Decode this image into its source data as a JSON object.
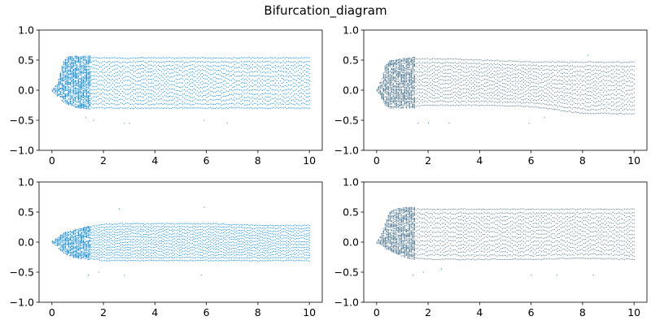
{
  "figure": {
    "title": "Bifurcation_diagram",
    "point_color": "#1f77b4"
  },
  "chart_data": [
    {
      "type": "scatter",
      "panel": "top-left",
      "title": "",
      "xlabel": "",
      "ylabel": "",
      "xlim": [
        -0.5,
        10.5
      ],
      "ylim": [
        -1.0,
        1.0
      ],
      "xticks": [
        0,
        2,
        4,
        6,
        8,
        10
      ],
      "xtick_labels": [
        "0",
        "2",
        "4",
        "6",
        "8",
        "10"
      ],
      "yticks": [
        -1.0,
        -0.5,
        0.0,
        0.5,
        1.0
      ],
      "ytick_labels": [
        "−1.0",
        "−0.5",
        "0.0",
        "0.5",
        "1.0"
      ],
      "grid": false,
      "x_range": [
        0,
        10
      ],
      "envelope": {
        "r": [
          0.0,
          0.2,
          0.3,
          0.5,
          0.8,
          1.0,
          1.5,
          2.0,
          3.0,
          4.0,
          6.0,
          8.0,
          10.0
        ],
        "upper": [
          0.02,
          0.1,
          0.3,
          0.55,
          0.57,
          0.57,
          0.57,
          0.57,
          0.57,
          0.57,
          0.57,
          0.57,
          0.57
        ],
        "lower": [
          -0.02,
          -0.1,
          -0.15,
          -0.22,
          -0.27,
          -0.3,
          -0.32,
          -0.33,
          -0.33,
          -0.33,
          -0.33,
          -0.33,
          -0.33
        ]
      },
      "outliers": [
        [
          1.3,
          -0.45
        ],
        [
          1.6,
          -0.5
        ],
        [
          2.8,
          -0.55
        ],
        [
          3.0,
          -0.55
        ],
        [
          5.9,
          -0.5
        ],
        [
          6.8,
          -0.55
        ]
      ]
    },
    {
      "type": "scatter",
      "panel": "top-right",
      "title": "",
      "xlabel": "",
      "ylabel": "",
      "xlim": [
        -0.5,
        10.5
      ],
      "ylim": [
        -1.0,
        1.0
      ],
      "xticks": [
        0,
        2,
        4,
        6,
        8,
        10
      ],
      "xtick_labels": [
        "0",
        "2",
        "4",
        "6",
        "8",
        "10"
      ],
      "yticks": [
        -1.0,
        -0.5,
        0.0,
        0.5,
        1.0
      ],
      "ytick_labels": [
        "−1.0",
        "−0.5",
        "0.0",
        "0.5",
        "1.0"
      ],
      "grid": false,
      "x_range": [
        0,
        10
      ],
      "envelope": {
        "r": [
          0.0,
          0.2,
          0.3,
          0.5,
          0.8,
          1.0,
          1.5,
          2.0,
          3.0,
          4.0,
          6.0,
          8.0,
          10.0
        ],
        "upper": [
          0.02,
          0.2,
          0.4,
          0.5,
          0.52,
          0.53,
          0.55,
          0.55,
          0.55,
          0.53,
          0.5,
          0.5,
          0.5
        ],
        "lower": [
          -0.02,
          -0.15,
          -0.25,
          -0.3,
          -0.3,
          -0.3,
          -0.3,
          -0.28,
          -0.28,
          -0.28,
          -0.3,
          -0.42,
          -0.43
        ]
      },
      "outliers": [
        [
          1.6,
          -0.55
        ],
        [
          2.0,
          -0.55
        ],
        [
          2.8,
          -0.55
        ],
        [
          5.9,
          -0.55
        ],
        [
          6.5,
          -0.45
        ],
        [
          8.2,
          0.58
        ]
      ]
    },
    {
      "type": "scatter",
      "panel": "bottom-left",
      "title": "",
      "xlabel": "",
      "ylabel": "",
      "xlim": [
        -0.5,
        10.5
      ],
      "ylim": [
        -1.0,
        1.0
      ],
      "xticks": [
        0,
        2,
        4,
        6,
        8,
        10
      ],
      "xtick_labels": [
        "0",
        "2",
        "4",
        "6",
        "8",
        "10"
      ],
      "yticks": [
        -1.0,
        -0.5,
        0.0,
        0.5,
        1.0
      ],
      "ytick_labels": [
        "−1.0",
        "−0.5",
        "0.0",
        "0.5",
        "1.0"
      ],
      "grid": false,
      "x_range": [
        0,
        10
      ],
      "envelope": {
        "r": [
          0.0,
          0.2,
          0.3,
          0.5,
          0.8,
          1.0,
          1.5,
          2.0,
          3.0,
          4.0,
          6.0,
          8.0,
          10.0
        ],
        "upper": [
          0.02,
          0.08,
          0.12,
          0.16,
          0.2,
          0.22,
          0.28,
          0.32,
          0.33,
          0.33,
          0.33,
          0.3,
          0.3
        ],
        "lower": [
          -0.02,
          -0.08,
          -0.15,
          -0.2,
          -0.25,
          -0.28,
          -0.3,
          -0.33,
          -0.33,
          -0.33,
          -0.33,
          -0.33,
          -0.33
        ]
      },
      "outliers": [
        [
          1.4,
          -0.55
        ],
        [
          1.8,
          -0.5
        ],
        [
          2.6,
          0.55
        ],
        [
          2.8,
          -0.55
        ],
        [
          5.9,
          0.58
        ],
        [
          5.8,
          -0.55
        ]
      ]
    },
    {
      "type": "scatter",
      "panel": "bottom-right",
      "title": "",
      "xlabel": "",
      "ylabel": "",
      "xlim": [
        -0.5,
        10.5
      ],
      "ylim": [
        -1.0,
        1.0
      ],
      "xticks": [
        0,
        2,
        4,
        6,
        8,
        10
      ],
      "xtick_labels": [
        "0",
        "2",
        "4",
        "6",
        "8",
        "10"
      ],
      "yticks": [
        -1.0,
        -0.5,
        0.0,
        0.5,
        1.0
      ],
      "ytick_labels": [
        "−1.0",
        "−0.5",
        "0.0",
        "0.5",
        "1.0"
      ],
      "grid": false,
      "x_range": [
        0,
        10
      ],
      "envelope": {
        "r": [
          0.0,
          0.2,
          0.3,
          0.5,
          0.8,
          1.0,
          1.5,
          2.0,
          3.0,
          4.0,
          6.0,
          8.0,
          10.0
        ],
        "upper": [
          0.02,
          0.15,
          0.3,
          0.5,
          0.57,
          0.58,
          0.58,
          0.58,
          0.58,
          0.58,
          0.58,
          0.58,
          0.58
        ],
        "lower": [
          -0.02,
          -0.05,
          -0.1,
          -0.15,
          -0.2,
          -0.25,
          -0.3,
          -0.32,
          -0.32,
          -0.32,
          -0.32,
          -0.3,
          -0.32
        ]
      },
      "outliers": [
        [
          1.4,
          -0.55
        ],
        [
          1.8,
          -0.5
        ],
        [
          2.5,
          -0.45
        ],
        [
          6.0,
          -0.55
        ],
        [
          7.0,
          -0.55
        ],
        [
          8.4,
          -0.55
        ]
      ]
    }
  ]
}
